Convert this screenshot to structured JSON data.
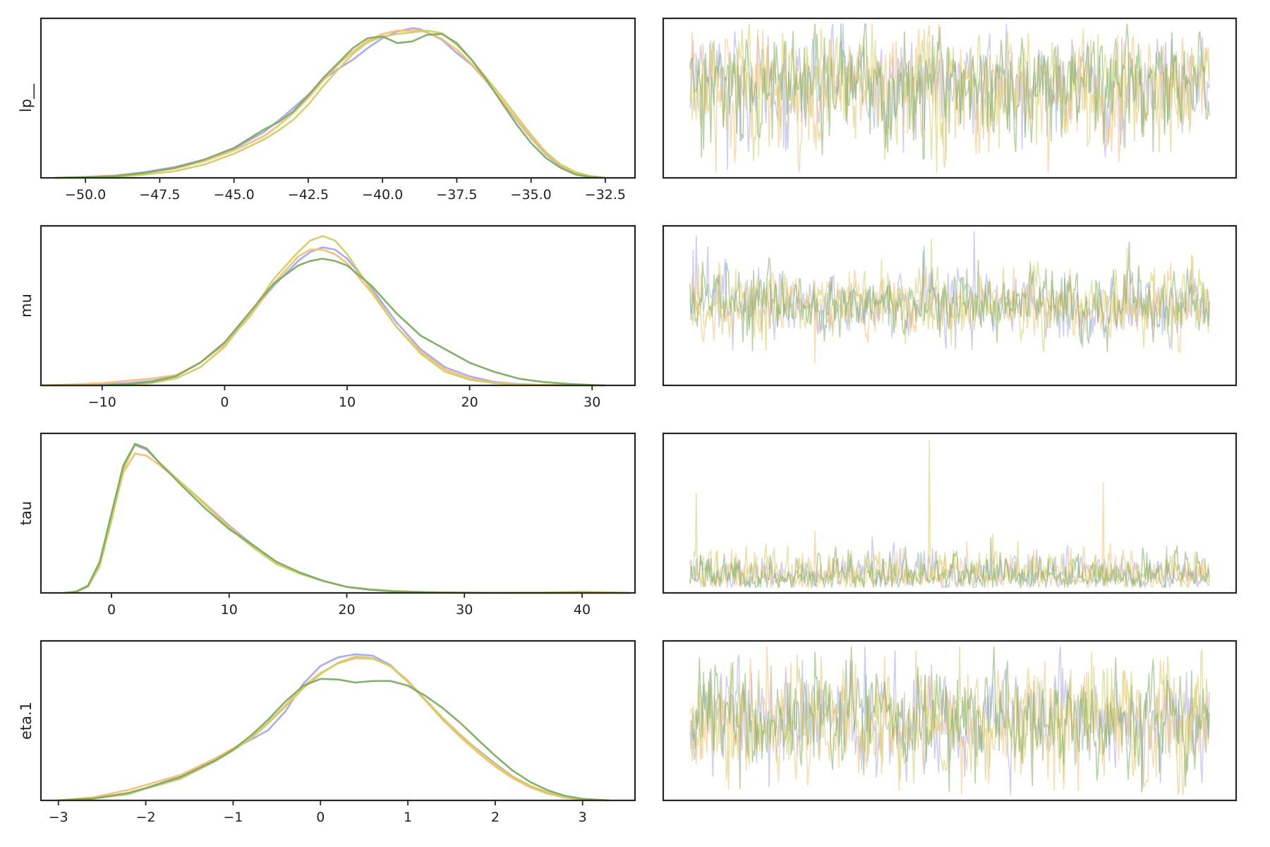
{
  "chart_data": {
    "type": "line",
    "chains": [
      {
        "color": "#a5a6ef"
      },
      {
        "color": "#f3bf72"
      },
      {
        "color": "#d2cd66"
      },
      {
        "color": "#7cac62"
      }
    ],
    "trace_draws": 500,
    "rows": [
      {
        "label": "lp__",
        "xlim": [
          -51.5,
          -31.5
        ],
        "xticks": [
          -50.0,
          -47.5,
          -45.0,
          -42.5,
          -40.0,
          -37.5,
          -35.0,
          -32.5
        ],
        "xtick_labels": [
          "−50.0",
          "−47.5",
          "−45.0",
          "−42.5",
          "−40.0",
          "−37.5",
          "−35.0",
          "−32.5"
        ],
        "density": {
          "ymax": 0.185,
          "x": [
            -51,
            -50,
            -49,
            -48,
            -47,
            -46,
            -45,
            -44,
            -43.5,
            -43,
            -42.5,
            -42,
            -41.5,
            -41,
            -40.5,
            -40,
            -39.5,
            -39,
            -38.75,
            -38.5,
            -38,
            -37.5,
            -37,
            -36.5,
            -36,
            -35.5,
            -35,
            -34.5,
            -34,
            -33.5,
            -33,
            -32.5
          ],
          "series": [
            [
              0.0,
              0.001,
              0.003,
              0.007,
              0.013,
              0.022,
              0.035,
              0.055,
              0.069,
              0.084,
              0.1,
              0.118,
              0.131,
              0.142,
              0.156,
              0.168,
              0.176,
              0.18,
              0.179,
              0.175,
              0.166,
              0.15,
              0.136,
              0.116,
              0.093,
              0.07,
              0.048,
              0.028,
              0.014,
              0.006,
              0.002,
              0.0
            ],
            [
              0.0,
              0.001,
              0.003,
              0.006,
              0.011,
              0.02,
              0.033,
              0.05,
              0.063,
              0.078,
              0.096,
              0.117,
              0.136,
              0.152,
              0.165,
              0.173,
              0.177,
              0.177,
              0.177,
              0.175,
              0.167,
              0.154,
              0.137,
              0.116,
              0.094,
              0.071,
              0.049,
              0.029,
              0.015,
              0.006,
              0.002,
              0.0
            ],
            [
              0.0,
              0.0,
              0.001,
              0.004,
              0.008,
              0.016,
              0.029,
              0.046,
              0.057,
              0.07,
              0.088,
              0.11,
              0.13,
              0.149,
              0.163,
              0.17,
              0.173,
              0.175,
              0.176,
              0.177,
              0.174,
              0.16,
              0.142,
              0.12,
              0.098,
              0.075,
              0.052,
              0.031,
              0.016,
              0.007,
              0.002,
              0.0
            ],
            [
              0.0,
              0.001,
              0.002,
              0.006,
              0.012,
              0.022,
              0.036,
              0.058,
              0.067,
              0.08,
              0.099,
              0.12,
              0.138,
              0.156,
              0.168,
              0.17,
              0.162,
              0.164,
              0.168,
              0.172,
              0.173,
              0.162,
              0.142,
              0.118,
              0.091,
              0.065,
              0.042,
              0.024,
              0.012,
              0.004,
              0.001,
              0.0
            ]
          ]
        }
      },
      {
        "label": "mu",
        "xlim": [
          -15,
          33.5
        ],
        "xticks": [
          -10,
          0,
          10,
          20,
          30
        ],
        "xtick_labels": [
          "−10",
          "0",
          "10",
          "20",
          "30"
        ],
        "density": {
          "ymax": 0.068,
          "x": [
            -15,
            -12,
            -10,
            -8,
            -6,
            -4,
            -2,
            0,
            2,
            4,
            6,
            7,
            8,
            9,
            10,
            12,
            14,
            16,
            18,
            20,
            22,
            24,
            26,
            28,
            30,
            31
          ],
          "series": [
            [
              0.0,
              0.0,
              0.0005,
              0.001,
              0.002,
              0.004,
              0.01,
              0.019,
              0.031,
              0.044,
              0.055,
              0.059,
              0.061,
              0.06,
              0.056,
              0.043,
              0.028,
              0.016,
              0.008,
              0.004,
              0.0015,
              0.0006,
              0.0002,
              0.0001,
              0.0,
              0.0
            ],
            [
              0.0,
              0.0005,
              0.001,
              0.002,
              0.003,
              0.0045,
              0.01,
              0.018,
              0.03,
              0.045,
              0.057,
              0.06,
              0.06,
              0.058,
              0.054,
              0.041,
              0.026,
              0.015,
              0.007,
              0.003,
              0.0012,
              0.0005,
              0.0002,
              0.0001,
              0.0,
              0.0
            ],
            [
              0.0,
              0.0,
              0.0,
              0.0005,
              0.001,
              0.003,
              0.008,
              0.017,
              0.031,
              0.047,
              0.059,
              0.064,
              0.066,
              0.064,
              0.058,
              0.042,
              0.026,
              0.014,
              0.006,
              0.0025,
              0.001,
              0.0004,
              0.0001,
              0.0,
              0.0,
              0.0
            ],
            [
              0.0,
              0.0,
              0.0,
              0.0005,
              0.0015,
              0.004,
              0.01,
              0.019,
              0.032,
              0.045,
              0.053,
              0.055,
              0.056,
              0.055,
              0.053,
              0.044,
              0.032,
              0.022,
              0.016,
              0.01,
              0.006,
              0.003,
              0.0015,
              0.0007,
              0.0002,
              0.0
            ]
          ]
        }
      },
      {
        "label": "tau",
        "xlim": [
          -6,
          44.5
        ],
        "xticks": [
          0,
          10,
          20,
          30,
          40
        ],
        "xtick_labels": [
          "0",
          "10",
          "20",
          "30",
          "40"
        ],
        "density": {
          "ymax": 0.128,
          "x": [
            -4,
            -3,
            -2,
            -1,
            0,
            1,
            2,
            3,
            4,
            6,
            8,
            10,
            12,
            14,
            16,
            18,
            20,
            22,
            24,
            26,
            28,
            30,
            32,
            36,
            40,
            44
          ],
          "series": [
            [
              0.0,
              0.001,
              0.006,
              0.025,
              0.065,
              0.105,
              0.123,
              0.119,
              0.109,
              0.091,
              0.074,
              0.056,
              0.04,
              0.025,
              0.016,
              0.01,
              0.005,
              0.003,
              0.0015,
              0.0008,
              0.0004,
              0.0002,
              0.0001,
              0.0,
              0.0,
              0.0
            ],
            [
              0.0,
              0.001,
              0.006,
              0.024,
              0.062,
              0.1,
              0.116,
              0.114,
              0.107,
              0.091,
              0.074,
              0.055,
              0.039,
              0.025,
              0.016,
              0.01,
              0.005,
              0.0028,
              0.0015,
              0.0008,
              0.0004,
              0.0002,
              0.0001,
              0.0,
              0.0005,
              0.0
            ],
            [
              0.0,
              0.001,
              0.005,
              0.022,
              0.06,
              0.102,
              0.124,
              0.12,
              0.109,
              0.091,
              0.073,
              0.054,
              0.038,
              0.024,
              0.016,
              0.01,
              0.005,
              0.0028,
              0.0016,
              0.0009,
              0.0004,
              0.0002,
              0.0001,
              0.0002,
              0.001,
              0.0
            ],
            [
              0.0,
              0.001,
              0.006,
              0.026,
              0.066,
              0.106,
              0.124,
              0.12,
              0.109,
              0.089,
              0.07,
              0.053,
              0.04,
              0.026,
              0.017,
              0.01,
              0.005,
              0.0026,
              0.0013,
              0.0007,
              0.0003,
              0.0001,
              0.0,
              0.0,
              0.0,
              0.0
            ]
          ]
        }
      },
      {
        "label": "eta.1",
        "xlim": [
          -3.2,
          3.6
        ],
        "xticks": [
          -3,
          -2,
          -1,
          0,
          1,
          2,
          3
        ],
        "xtick_labels": [
          "−3",
          "−2",
          "−1",
          "0",
          "1",
          "2",
          "3"
        ],
        "density": {
          "ymax": 0.5,
          "x": [
            -3.0,
            -2.6,
            -2.2,
            -2.0,
            -1.6,
            -1.2,
            -1.0,
            -0.8,
            -0.6,
            -0.4,
            -0.2,
            0.0,
            0.2,
            0.4,
            0.6,
            0.8,
            1.0,
            1.2,
            1.4,
            1.6,
            1.8,
            2.0,
            2.2,
            2.4,
            2.6,
            2.8,
            3.0,
            3.3
          ],
          "series": [
            [
              0.0,
              0.006,
              0.024,
              0.04,
              0.078,
              0.135,
              0.167,
              0.197,
              0.228,
              0.29,
              0.378,
              0.437,
              0.465,
              0.475,
              0.47,
              0.44,
              0.385,
              0.325,
              0.262,
              0.21,
              0.165,
              0.12,
              0.078,
              0.046,
              0.024,
              0.01,
              0.003,
              0.0
            ],
            [
              0.0,
              0.01,
              0.034,
              0.05,
              0.083,
              0.137,
              0.169,
              0.204,
              0.253,
              0.31,
              0.37,
              0.414,
              0.445,
              0.462,
              0.46,
              0.437,
              0.39,
              0.325,
              0.262,
              0.206,
              0.156,
              0.11,
              0.072,
              0.043,
              0.022,
              0.009,
              0.003,
              0.0
            ],
            [
              0.0,
              0.006,
              0.02,
              0.038,
              0.07,
              0.128,
              0.162,
              0.2,
              0.25,
              0.305,
              0.364,
              0.41,
              0.447,
              0.468,
              0.462,
              0.436,
              0.385,
              0.328,
              0.268,
              0.214,
              0.163,
              0.117,
              0.078,
              0.048,
              0.026,
              0.011,
              0.004,
              0.0
            ],
            [
              0.0,
              0.006,
              0.024,
              0.04,
              0.076,
              0.13,
              0.165,
              0.21,
              0.262,
              0.322,
              0.372,
              0.395,
              0.393,
              0.383,
              0.388,
              0.388,
              0.373,
              0.34,
              0.3,
              0.252,
              0.198,
              0.145,
              0.097,
              0.06,
              0.033,
              0.015,
              0.005,
              0.0
            ]
          ]
        }
      }
    ]
  }
}
